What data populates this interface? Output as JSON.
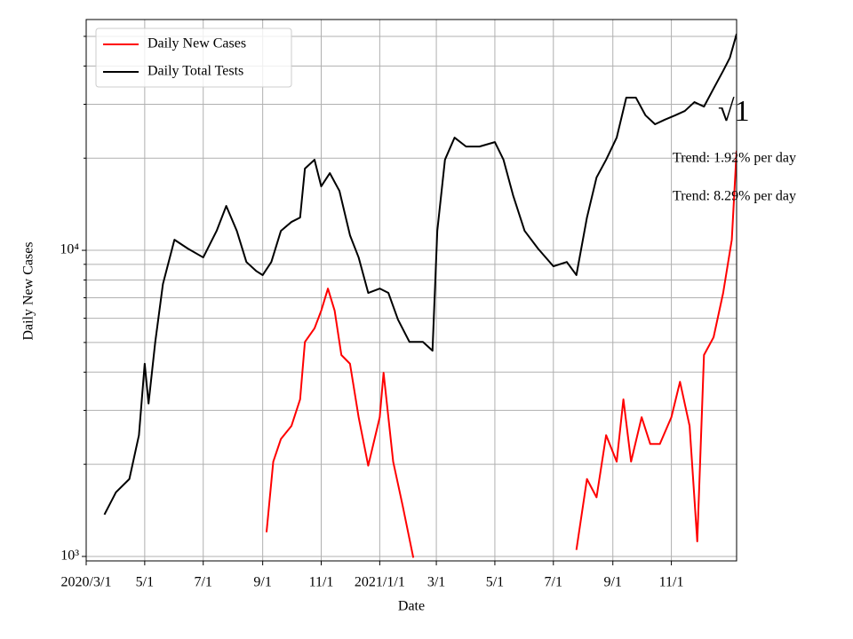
{
  "chart_data": {
    "type": "line",
    "x_label": "Date",
    "y_label": "Daily New Cases",
    "log_y": true,
    "grid": true,
    "legend": "upper left",
    "xlim": [
      "2020-03-01",
      "2022-01-08"
    ],
    "xticks": [
      {
        "value": "2020-03-01",
        "label": "2020/3/1"
      },
      {
        "value": "2020-05-01",
        "label": "5/1"
      },
      {
        "value": "2020-07-01",
        "label": "7/1"
      },
      {
        "value": "2020-09-01",
        "label": "9/1"
      },
      {
        "value": "2020-11-01",
        "label": "11/1"
      },
      {
        "value": "2021-01-01",
        "label": "2021/1/1"
      },
      {
        "value": "2021-03-01",
        "label": "3/1"
      },
      {
        "value": "2021-05-01",
        "label": "5/1"
      },
      {
        "value": "2021-07-01",
        "label": "7/1"
      },
      {
        "value": "2021-09-01",
        "label": "9/1"
      },
      {
        "value": "2021-11-01",
        "label": "11/1"
      }
    ],
    "ylim": [
      967,
      56750
    ],
    "yticks": [
      {
        "value": 1000,
        "label": "10³"
      },
      {
        "value": 10000,
        "label": "10⁴"
      }
    ],
    "yminorticks": [
      2000,
      3000,
      4000,
      5000,
      6000,
      7000,
      8000,
      9000,
      20000,
      30000,
      40000,
      50000
    ],
    "annotations": [
      "√1",
      "Trend: 1.92% per day",
      "Trend: 8.29% per day"
    ],
    "series": [
      {
        "name": "Daily New Cases",
        "color": "#ff0000",
        "x": [
          "2020-09-05",
          "2020-09-12",
          "2020-09-20",
          "2020-10-01",
          "2020-10-10",
          "2020-10-15",
          "2020-10-25",
          "2020-11-01",
          "2020-11-08",
          "2020-11-15",
          "2020-11-22",
          "2020-12-01",
          "2020-12-10",
          "2020-12-20",
          "2021-01-01",
          "2021-01-05",
          "2021-01-15",
          "2021-01-25",
          "2021-02-05",
          "2021-04-01",
          "2021-07-25",
          "2021-08-05",
          "2021-08-15",
          "2021-08-25",
          "2021-09-05",
          "2021-09-12",
          "2021-09-20",
          "2021-10-01",
          "2021-10-10",
          "2021-10-20",
          "2021-11-01",
          "2021-11-10",
          "2021-11-20",
          "2021-11-28",
          "2021-12-05",
          "2021-12-15",
          "2021-12-25",
          "2022-01-03",
          "2022-01-08"
        ],
        "values": [
          1200,
          2040,
          2420,
          2670,
          3260,
          5020,
          5560,
          6350,
          7500,
          6350,
          4550,
          4260,
          2850,
          1980,
          2850,
          3980,
          2040,
          1460,
          990,
          null,
          1050,
          1790,
          1560,
          2490,
          2040,
          3260,
          2040,
          2850,
          2330,
          2330,
          2850,
          3720,
          2670,
          1120,
          4550,
          5200,
          7260,
          10830,
          21150
        ]
      },
      {
        "name": "Daily Total Tests",
        "color": "#000000",
        "x": [
          "2020-03-20",
          "2020-04-01",
          "2020-04-15",
          "2020-04-25",
          "2020-05-01",
          "2020-05-05",
          "2020-05-12",
          "2020-05-20",
          "2020-06-01",
          "2020-06-15",
          "2020-07-01",
          "2020-07-15",
          "2020-07-25",
          "2020-08-05",
          "2020-08-15",
          "2020-08-25",
          "2020-09-01",
          "2020-09-10",
          "2020-09-20",
          "2020-10-01",
          "2020-10-10",
          "2020-10-15",
          "2020-10-25",
          "2020-11-01",
          "2020-11-10",
          "2020-11-20",
          "2020-12-01",
          "2020-12-10",
          "2020-12-20",
          "2021-01-01",
          "2021-01-10",
          "2021-01-20",
          "2021-02-01",
          "2021-02-15",
          "2021-02-25",
          "2021-03-02",
          "2021-03-10",
          "2021-03-20",
          "2021-04-01",
          "2021-04-15",
          "2021-05-01",
          "2021-05-10",
          "2021-05-20",
          "2021-06-01",
          "2021-06-15",
          "2021-07-01",
          "2021-07-15",
          "2021-07-25",
          "2021-08-05",
          "2021-08-15",
          "2021-08-25",
          "2021-09-05",
          "2021-09-15",
          "2021-09-25",
          "2021-10-05",
          "2021-10-15",
          "2021-10-25",
          "2021-11-05",
          "2021-11-15",
          "2021-11-25",
          "2021-12-05",
          "2021-12-15",
          "2021-12-25",
          "2022-01-01",
          "2022-01-08"
        ],
        "values": [
          1370,
          1620,
          1790,
          2490,
          4260,
          3160,
          5020,
          7760,
          10830,
          10130,
          9480,
          11580,
          13960,
          11580,
          9160,
          8570,
          8300,
          9160,
          11580,
          12380,
          12800,
          18490,
          19770,
          16180,
          17870,
          15630,
          11200,
          9480,
          7260,
          7500,
          7260,
          5940,
          5020,
          5020,
          4700,
          11580,
          19770,
          23340,
          21830,
          21830,
          22570,
          19770,
          15130,
          11580,
          10130,
          8870,
          9160,
          8300,
          12800,
          17300,
          19770,
          23340,
          31550,
          31550,
          27610,
          25810,
          26700,
          27610,
          28520,
          30490,
          29480,
          33760,
          38580,
          42580,
          50960
        ]
      }
    ]
  }
}
